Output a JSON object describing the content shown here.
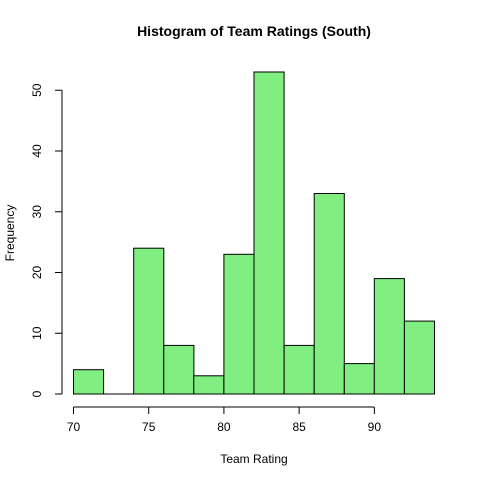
{
  "chart_data": {
    "type": "bar",
    "title": "Histogram of Team Ratings (South)",
    "xlabel": "Team Rating",
    "ylabel": "Frequency",
    "bins": [
      {
        "start": 70,
        "end": 72,
        "count": 4
      },
      {
        "start": 72,
        "end": 74,
        "count": 0
      },
      {
        "start": 74,
        "end": 76,
        "count": 24
      },
      {
        "start": 76,
        "end": 78,
        "count": 8
      },
      {
        "start": 78,
        "end": 80,
        "count": 3
      },
      {
        "start": 80,
        "end": 82,
        "count": 23
      },
      {
        "start": 82,
        "end": 84,
        "count": 53
      },
      {
        "start": 84,
        "end": 86,
        "count": 8
      },
      {
        "start": 86,
        "end": 88,
        "count": 33
      },
      {
        "start": 88,
        "end": 90,
        "count": 5
      },
      {
        "start": 90,
        "end": 92,
        "count": 19
      },
      {
        "start": 92,
        "end": 94,
        "count": 12
      }
    ],
    "xlim": [
      70,
      94
    ],
    "ylim": [
      0,
      53
    ],
    "x_ticks": [
      "70",
      "75",
      "80",
      "85",
      "90"
    ],
    "y_ticks": [
      "0",
      "10",
      "20",
      "30",
      "40",
      "50"
    ],
    "bar_color": "#80EE80",
    "grid": false
  }
}
